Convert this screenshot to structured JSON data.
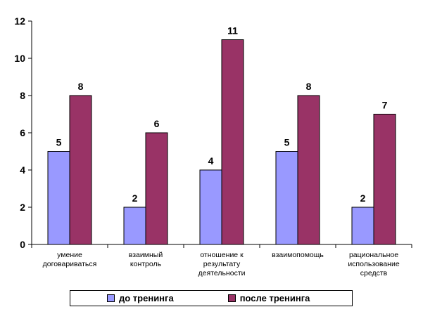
{
  "chart_data": {
    "type": "bar",
    "categories": [
      [
        "умение",
        "договариваться"
      ],
      [
        "взаимный",
        "контроль"
      ],
      [
        "отношение к",
        "результату",
        "деятельности"
      ],
      [
        "взаимопомощь"
      ],
      [
        "рациональное",
        "использование",
        "средств"
      ]
    ],
    "series": [
      {
        "name": "до тренинга",
        "color": "#9999ff",
        "values": [
          5,
          2,
          4,
          5,
          2
        ]
      },
      {
        "name": "после тренинга",
        "color": "#993366",
        "values": [
          8,
          6,
          11,
          8,
          7
        ]
      }
    ],
    "ylim": [
      0,
      12
    ],
    "yticks": [
      0,
      2,
      4,
      6,
      8,
      10,
      12
    ],
    "legend_position": "bottom",
    "grid": false
  }
}
